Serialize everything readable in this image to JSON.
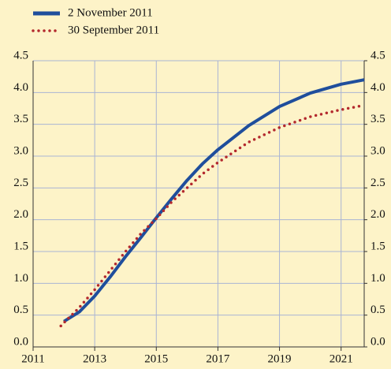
{
  "chart_data": {
    "type": "line",
    "x": [
      2011.9,
      2012,
      2012.5,
      2013,
      2013.5,
      2014,
      2014.5,
      2015,
      2015.5,
      2016,
      2016.5,
      2017,
      2018,
      2019,
      2020,
      2021,
      2021.75
    ],
    "series": [
      {
        "name": "2 November 2011",
        "color": "#1f4e9c",
        "style": "solid",
        "values": [
          null,
          0.4,
          0.55,
          0.8,
          1.1,
          1.42,
          1.72,
          2.03,
          2.33,
          2.62,
          2.88,
          3.1,
          3.48,
          3.78,
          3.99,
          4.13,
          4.2
        ]
      },
      {
        "name": "30 September 2011",
        "color": "#b3282d",
        "style": "dotted",
        "values": [
          0.33,
          0.38,
          0.62,
          0.9,
          1.2,
          1.5,
          1.78,
          2.02,
          2.28,
          2.5,
          2.72,
          2.9,
          3.22,
          3.45,
          3.62,
          3.73,
          3.8
        ]
      }
    ],
    "xlim": [
      2011,
      2021.75
    ],
    "xticks": [
      2011,
      2013,
      2015,
      2017,
      2019,
      2021
    ],
    "ylim": [
      0,
      4.5
    ],
    "yticks": [
      {
        "value": 0,
        "label": "0.0"
      },
      {
        "value": 0.5,
        "label": "0.5"
      },
      {
        "value": 1,
        "label": "1.0"
      },
      {
        "value": 1.5,
        "label": "1.5"
      },
      {
        "value": 2,
        "label": "2.0"
      },
      {
        "value": 2.5,
        "label": "2.5"
      },
      {
        "value": 3,
        "label": "3.0"
      },
      {
        "value": 3.5,
        "label": "3.5"
      },
      {
        "value": 4,
        "label": "4.0"
      },
      {
        "value": 4.5,
        "label": "4.5"
      }
    ],
    "y2lim": [
      0,
      4.5
    ],
    "y2ticks": [
      {
        "value": 0,
        "label": "0.0"
      },
      {
        "value": 0.5,
        "label": "0.5"
      },
      {
        "value": 1,
        "label": "1.0"
      },
      {
        "value": 1.5,
        "label": "1.5"
      },
      {
        "value": 2,
        "label": "2.0"
      },
      {
        "value": 2.5,
        "label": "2.5"
      },
      {
        "value": 3,
        "label": "3.0"
      },
      {
        "value": 3.5,
        "label": "3.5"
      },
      {
        "value": 4,
        "label": "4.0"
      },
      {
        "value": 4.5,
        "label": "4.5"
      }
    ],
    "grid": true,
    "legend": "top-left"
  }
}
